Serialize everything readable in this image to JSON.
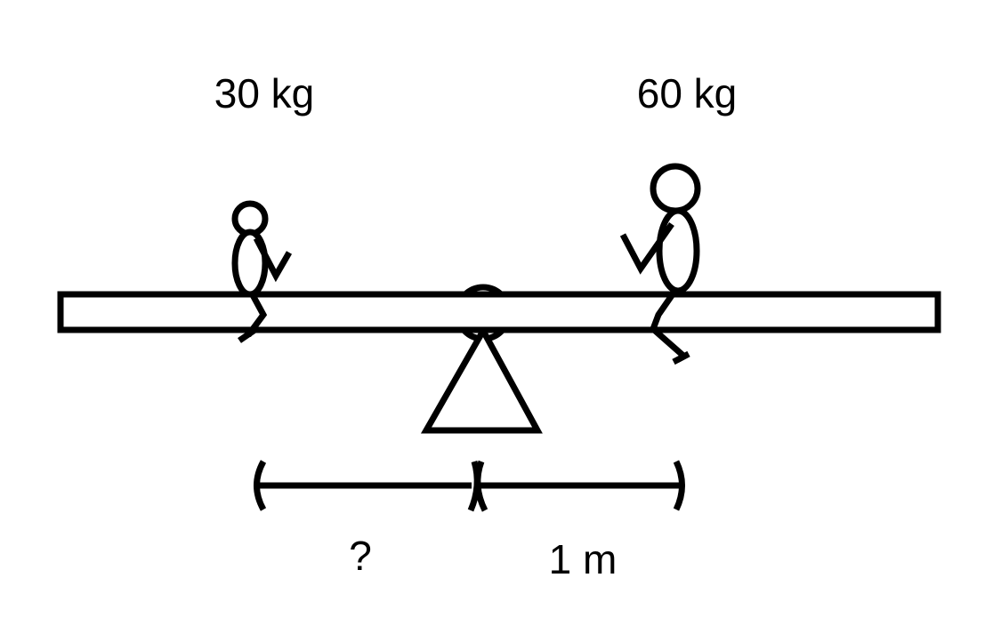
{
  "labels": {
    "left_mass": "30 kg",
    "right_mass": "60 kg",
    "left_distance": "?",
    "right_distance": "1 m"
  },
  "colors": {
    "ink": "#000000",
    "background": "#ffffff"
  }
}
